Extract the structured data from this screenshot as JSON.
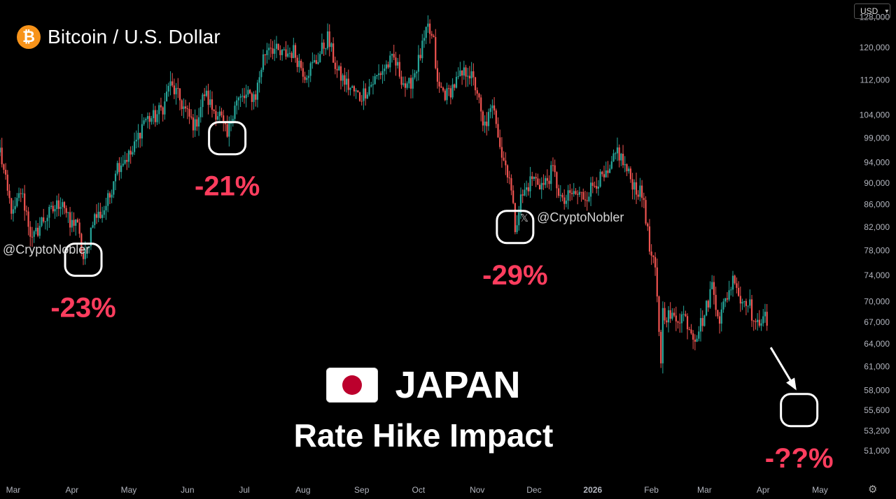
{
  "header": {
    "title": "Bitcoin / U.S. Dollar",
    "logo_glyph": "₿",
    "currency": "USD"
  },
  "overlay": {
    "headline": "JAPAN",
    "subtitle": "Rate Hike Impact",
    "watermark": "@CryptoNobler",
    "x_glyph": "𝕏"
  },
  "colors": {
    "up": "#26a69a",
    "down": "#ef5350",
    "annotation": "#ff3d5e",
    "background": "#000000",
    "axis_text": "#b2b5be"
  },
  "chart_data": {
    "type": "candlestick",
    "title": "Bitcoin / U.S. Dollar",
    "y_scale": "log",
    "ylim": [
      49000,
      130000
    ],
    "y_ticks": [
      "128,000",
      "120,000",
      "112,000",
      "104,000",
      "99,000",
      "94,000",
      "90,000",
      "86,000",
      "82,000",
      "78,000",
      "74,000",
      "70,000",
      "67,000",
      "64,000",
      "61,000",
      "58,000",
      "55,600",
      "53,200",
      "51,000"
    ],
    "x_ticks": [
      "Mar",
      "Apr",
      "May",
      "Jun",
      "Jul",
      "Aug",
      "Sep",
      "Oct",
      "Nov",
      "Dec",
      "2026",
      "Feb",
      "Mar",
      "Apr",
      "May"
    ],
    "x_range": [
      "2025-02-22",
      "2026-05-16"
    ],
    "path": [
      [
        "2025-02-22",
        96500
      ],
      [
        "2025-02-26",
        88000
      ],
      [
        "2025-03-01",
        84000
      ],
      [
        "2025-03-05",
        88500
      ],
      [
        "2025-03-08",
        84500
      ],
      [
        "2025-03-11",
        79500
      ],
      [
        "2025-03-16",
        83000
      ],
      [
        "2025-03-22",
        85000
      ],
      [
        "2025-03-27",
        87000
      ],
      [
        "2025-03-31",
        82000
      ],
      [
        "2025-04-03",
        83500
      ],
      [
        "2025-04-07",
        76500
      ],
      [
        "2025-04-09",
        78000
      ],
      [
        "2025-04-12",
        83500
      ],
      [
        "2025-04-17",
        84500
      ],
      [
        "2025-04-21",
        87500
      ],
      [
        "2025-04-24",
        93000
      ],
      [
        "2025-04-28",
        94500
      ],
      [
        "2025-05-03",
        96000
      ],
      [
        "2025-05-09",
        103000
      ],
      [
        "2025-05-15",
        103500
      ],
      [
        "2025-05-20",
        106500
      ],
      [
        "2025-05-22",
        111000
      ],
      [
        "2025-05-26",
        109000
      ],
      [
        "2025-06-01",
        104000
      ],
      [
        "2025-06-05",
        101500
      ],
      [
        "2025-06-10",
        109000
      ],
      [
        "2025-06-14",
        105500
      ],
      [
        "2025-06-18",
        104000
      ],
      [
        "2025-06-22",
        99000
      ],
      [
        "2025-06-26",
        107000
      ],
      [
        "2025-07-02",
        108000
      ],
      [
        "2025-07-07",
        108500
      ],
      [
        "2025-07-11",
        117500
      ],
      [
        "2025-07-14",
        121000
      ],
      [
        "2025-07-20",
        118000
      ],
      [
        "2025-07-27",
        119000
      ],
      [
        "2025-08-02",
        113500
      ],
      [
        "2025-08-08",
        116500
      ],
      [
        "2025-08-14",
        122500
      ],
      [
        "2025-08-19",
        114000
      ],
      [
        "2025-08-25",
        110500
      ],
      [
        "2025-08-31",
        108000
      ],
      [
        "2025-09-06",
        111000
      ],
      [
        "2025-09-13",
        115000
      ],
      [
        "2025-09-18",
        117000
      ],
      [
        "2025-09-25",
        109500
      ],
      [
        "2025-10-01",
        116500
      ],
      [
        "2025-10-06",
        125000
      ],
      [
        "2025-10-09",
        121000
      ],
      [
        "2025-10-11",
        110500
      ],
      [
        "2025-10-16",
        108500
      ],
      [
        "2025-10-20",
        111000
      ],
      [
        "2025-10-27",
        114500
      ],
      [
        "2025-11-01",
        109500
      ],
      [
        "2025-11-04",
        101000
      ],
      [
        "2025-11-10",
        106000
      ],
      [
        "2025-11-14",
        95500
      ],
      [
        "2025-11-18",
        91500
      ],
      [
        "2025-11-21",
        82000
      ],
      [
        "2025-11-24",
        87000
      ],
      [
        "2025-11-30",
        91000
      ],
      [
        "2025-12-06",
        89500
      ],
      [
        "2025-12-11",
        92500
      ],
      [
        "2025-12-16",
        86000
      ],
      [
        "2025-12-21",
        88000
      ],
      [
        "2025-12-28",
        87500
      ],
      [
        "2026-01-03",
        90500
      ],
      [
        "2026-01-09",
        91000
      ],
      [
        "2026-01-14",
        96500
      ],
      [
        "2026-01-20",
        91500
      ],
      [
        "2026-01-24",
        89000
      ],
      [
        "2026-01-28",
        87000
      ],
      [
        "2026-01-31",
        78000
      ],
      [
        "2026-02-03",
        74500
      ],
      [
        "2026-02-06",
        62000
      ],
      [
        "2026-02-07",
        68500
      ],
      [
        "2026-02-12",
        67500
      ],
      [
        "2026-02-18",
        68000
      ],
      [
        "2026-02-24",
        65000
      ],
      [
        "2026-03-01",
        68000
      ],
      [
        "2026-03-05",
        72500
      ],
      [
        "2026-03-09",
        67500
      ],
      [
        "2026-03-13",
        71000
      ],
      [
        "2026-03-17",
        74000
      ],
      [
        "2026-03-20",
        70000
      ],
      [
        "2026-03-24",
        70500
      ],
      [
        "2026-03-28",
        66000
      ],
      [
        "2026-04-01",
        68500
      ],
      [
        "2026-04-03",
        66500
      ]
    ],
    "annotations": [
      {
        "label": "-23%",
        "date": "2025-04-07",
        "price": 76500
      },
      {
        "label": "-21%",
        "date": "2025-06-22",
        "price": 99000
      },
      {
        "label": "-29%",
        "date": "2025-11-21",
        "price": 82000
      },
      {
        "label": "-??%",
        "date": "2026-04-20",
        "price": 55600
      }
    ],
    "projection_arrow": {
      "from": [
        "2026-04-05",
        63500
      ],
      "to": [
        "2026-04-18",
        58200
      ]
    }
  }
}
